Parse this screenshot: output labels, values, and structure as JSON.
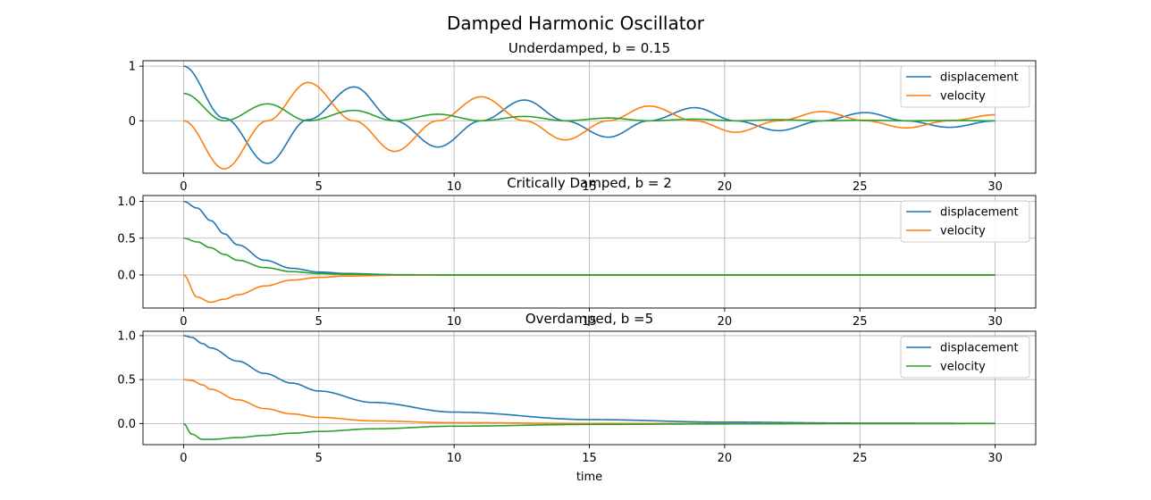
{
  "figure": {
    "title": "Damped Harmonic Oscillator"
  },
  "colors": {
    "blue": "#1f77b4",
    "orange": "#ff7f0e",
    "green": "#2ca02c",
    "grid": "#b0b0b0"
  },
  "chart_data": [
    {
      "type": "line",
      "title": "Underdamped, b = 0.15",
      "xlabel": "",
      "ylabel": "",
      "xlim": [
        -1.5,
        31.5
      ],
      "ylim": [
        -0.96,
        1.1
      ],
      "xticks": [
        0,
        5,
        10,
        15,
        20,
        25,
        30
      ],
      "yticks": [
        1,
        0
      ],
      "ytick_labels": [
        "1",
        "0"
      ],
      "grid": true,
      "legend_position": "top-right",
      "x": [
        0,
        1.5,
        3.1,
        4.6,
        6.3,
        7.8,
        9.4,
        11.0,
        12.6,
        14.1,
        15.7,
        17.2,
        18.9,
        20.4,
        22.0,
        23.6,
        25.2,
        26.7,
        28.3,
        30.0
      ],
      "series": [
        {
          "name": "displacement",
          "color": "#1f77b4",
          "values": [
            1.0,
            0.05,
            -0.78,
            0.02,
            0.62,
            0.0,
            -0.48,
            0.0,
            0.38,
            0.0,
            -0.3,
            0.0,
            0.24,
            0.0,
            -0.18,
            0.0,
            0.15,
            0.0,
            -0.12,
            0.0
          ]
        },
        {
          "name": "velocity",
          "color": "#ff7f0e",
          "values": [
            0.0,
            -0.88,
            0.0,
            0.7,
            0.0,
            -0.56,
            0.0,
            0.44,
            0.0,
            -0.35,
            0.0,
            0.27,
            0.0,
            -0.21,
            0.0,
            0.17,
            0.0,
            -0.13,
            0.0,
            0.11
          ]
        },
        {
          "name": "",
          "color": "#2ca02c",
          "values": [
            0.5,
            0.0,
            0.31,
            0.0,
            0.19,
            0.0,
            0.12,
            0.0,
            0.08,
            0.0,
            0.05,
            0.0,
            0.03,
            0.0,
            0.02,
            0.0,
            0.01,
            0.0,
            0.005,
            0.0
          ]
        }
      ],
      "legend": [
        "displacement",
        "velocity"
      ]
    },
    {
      "type": "line",
      "title": "Critically Damped, b = 2",
      "xlabel": "",
      "ylabel": "",
      "xlim": [
        -1.5,
        31.5
      ],
      "ylim": [
        -0.45,
        1.08
      ],
      "xticks": [
        0,
        5,
        10,
        15,
        20,
        25,
        30
      ],
      "yticks": [
        1.0,
        0.5,
        0.0
      ],
      "ytick_labels": [
        "1.0",
        "0.5",
        "0.0"
      ],
      "grid": true,
      "legend_position": "top-right",
      "x": [
        0,
        0.5,
        1,
        1.5,
        2,
        3,
        4,
        5,
        6,
        8,
        10,
        15,
        20,
        25,
        30
      ],
      "series": [
        {
          "name": "displacement",
          "color": "#1f77b4",
          "values": [
            1.0,
            0.91,
            0.74,
            0.56,
            0.41,
            0.2,
            0.09,
            0.04,
            0.02,
            0.003,
            0.0,
            0.0,
            0.0,
            0.0,
            0.0
          ]
        },
        {
          "name": "velocity",
          "color": "#ff7f0e",
          "values": [
            0.0,
            -0.3,
            -0.37,
            -0.33,
            -0.27,
            -0.15,
            -0.07,
            -0.034,
            -0.015,
            -0.003,
            0.0,
            0.0,
            0.0,
            0.0,
            0.0
          ]
        },
        {
          "name": "",
          "color": "#2ca02c",
          "values": [
            0.5,
            0.45,
            0.37,
            0.28,
            0.2,
            0.1,
            0.045,
            0.02,
            0.009,
            0.002,
            0.0,
            0.0,
            0.0,
            0.0,
            0.0
          ]
        }
      ],
      "legend": [
        "displacement",
        "velocity"
      ]
    },
    {
      "type": "line",
      "title": "Overdamped, b =5",
      "xlabel": "time",
      "ylabel": "",
      "xlim": [
        -1.5,
        31.5
      ],
      "ylim": [
        -0.24,
        1.05
      ],
      "xticks": [
        0,
        5,
        10,
        15,
        20,
        25,
        30
      ],
      "yticks": [
        1.0,
        0.5,
        0.0
      ],
      "ytick_labels": [
        "1.0",
        "0.5",
        "0.0"
      ],
      "grid": true,
      "legend_position": "top-right",
      "x": [
        0,
        0.3,
        0.7,
        1,
        2,
        3,
        4,
        5,
        7,
        10,
        15,
        20,
        25,
        30
      ],
      "series": [
        {
          "name": "displacement",
          "color": "#1f77b4",
          "values": [
            1.0,
            0.98,
            0.91,
            0.86,
            0.71,
            0.57,
            0.46,
            0.37,
            0.24,
            0.13,
            0.045,
            0.016,
            0.005,
            0.002
          ]
        },
        {
          "name": "",
          "color": "#ff7f0e",
          "values": [
            0.5,
            0.49,
            0.44,
            0.39,
            0.27,
            0.17,
            0.11,
            0.07,
            0.03,
            0.009,
            0.001,
            0.0,
            0.0,
            0.0
          ]
        },
        {
          "name": "velocity",
          "color": "#2ca02c",
          "values": [
            0.0,
            -0.12,
            -0.18,
            -0.18,
            -0.16,
            -0.135,
            -0.11,
            -0.09,
            -0.06,
            -0.03,
            -0.01,
            -0.004,
            -0.001,
            0.0
          ]
        }
      ],
      "legend": [
        "displacement",
        "velocity"
      ]
    }
  ]
}
